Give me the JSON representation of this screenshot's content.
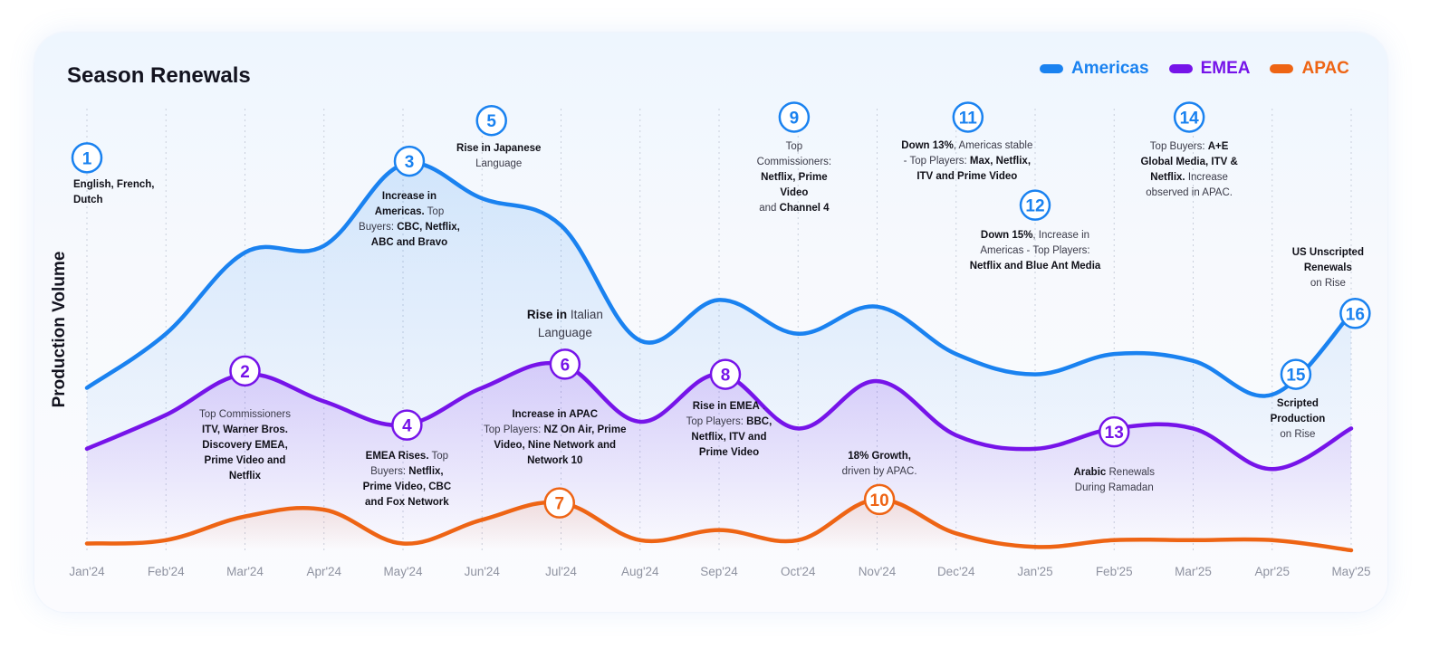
{
  "title": "Season Renewals",
  "ylabel": "Production Volume",
  "legend": [
    {
      "label": "Americas",
      "color": "#1a82f0"
    },
    {
      "label": "EMEA",
      "color": "#7614e9"
    },
    {
      "label": "APAC",
      "color": "#ee6414"
    }
  ],
  "chart_data": {
    "type": "line",
    "x": [
      "Jan'24",
      "Feb'24",
      "Mar'24",
      "Apr'24",
      "May'24",
      "Jun'24",
      "Jul'24",
      "Aug'24",
      "Sep'24",
      "Oct'24",
      "Nov'24",
      "Dec'24",
      "Jan'25",
      "Feb'25",
      "Mar'25",
      "Apr'25",
      "May'25"
    ],
    "series": [
      {
        "name": "Americas",
        "color": "#1a82f0",
        "values": [
          2.4,
          3.2,
          4.4,
          4.5,
          5.7,
          5.2,
          4.8,
          3.1,
          3.7,
          3.2,
          3.6,
          2.9,
          2.6,
          2.9,
          2.8,
          2.3,
          3.5
        ]
      },
      {
        "name": "EMEA",
        "color": "#7614e9",
        "values": [
          1.5,
          2.0,
          2.6,
          2.2,
          1.85,
          2.4,
          2.75,
          1.9,
          2.6,
          1.8,
          2.5,
          1.7,
          1.5,
          1.8,
          1.8,
          1.2,
          1.8
        ]
      },
      {
        "name": "APAC",
        "color": "#ee6414",
        "values": [
          0.1,
          0.15,
          0.5,
          0.6,
          0.1,
          0.45,
          0.7,
          0.15,
          0.3,
          0.15,
          0.75,
          0.25,
          0.05,
          0.15,
          0.15,
          0.15,
          0.0
        ]
      }
    ],
    "ylim": [
      0,
      6.5
    ],
    "grid": true,
    "legend_position": "top-right",
    "markers": [
      {
        "label": "1",
        "x": 0,
        "y": 5.8,
        "color": "#1a82f0",
        "series": "Americas"
      },
      {
        "label": "2",
        "x": 2.0,
        "y": 2.65,
        "color": "#7614e9",
        "series": "EMEA"
      },
      {
        "label": "3",
        "x": 4.08,
        "y": 5.75,
        "color": "#1a82f0",
        "series": "Americas"
      },
      {
        "label": "4",
        "x": 4.05,
        "y": 1.85,
        "color": "#7614e9",
        "series": "EMEA"
      },
      {
        "label": "5",
        "x": 5.12,
        "y": 6.35,
        "color": "#1a82f0",
        "series": "Americas"
      },
      {
        "label": "6",
        "x": 6.05,
        "y": 2.75,
        "color": "#7614e9",
        "series": "EMEA"
      },
      {
        "label": "7",
        "x": 5.98,
        "y": 0.7,
        "color": "#ee6414",
        "series": "APAC"
      },
      {
        "label": "8",
        "x": 8.08,
        "y": 2.6,
        "color": "#7614e9",
        "series": "EMEA"
      },
      {
        "label": "9",
        "x": 8.95,
        "y": 6.4,
        "color": "#1a82f0",
        "series": "Americas"
      },
      {
        "label": "10",
        "x": 10.03,
        "y": 0.75,
        "color": "#ee6414",
        "series": "APAC"
      },
      {
        "label": "11",
        "x": 11.15,
        "y": 6.4,
        "color": "#1a82f0",
        "series": "Americas"
      },
      {
        "label": "12",
        "x": 12.0,
        "y": 5.1,
        "color": "#1a82f0",
        "series": "Americas"
      },
      {
        "label": "13",
        "x": 13.0,
        "y": 1.75,
        "color": "#7614e9",
        "series": "EMEA"
      },
      {
        "label": "14",
        "x": 13.95,
        "y": 6.4,
        "color": "#1a82f0",
        "series": "Americas"
      },
      {
        "label": "15",
        "x": 15.3,
        "y": 2.6,
        "color": "#1a82f0",
        "series": "Americas"
      },
      {
        "label": "16",
        "x": 16.05,
        "y": 3.5,
        "color": "#1a82f0",
        "series": "Americas"
      }
    ]
  },
  "annotations": [
    {
      "id": "1",
      "lines": [
        "<b>English, French,</b>",
        "<b>Dutch</b>"
      ],
      "align": "left"
    },
    {
      "id": "2",
      "lines": [
        "Top Commissioners",
        "<b>ITV, Warner Bros.</b>",
        "<b>Discovery EMEA,</b>",
        "<b>Prime Video and</b>",
        "<b>Netflix</b>"
      ]
    },
    {
      "id": "3",
      "lines": [
        "<b>Increase in</b>",
        "<b>Americas.</b> Top",
        "Buyers: <b>CBC, Netflix,</b>",
        "<b>ABC and Bravo</b>"
      ]
    },
    {
      "id": "4",
      "lines": [
        "<b>EMEA Rises.</b> Top",
        "Buyers: <b>Netflix,</b>",
        "<b>Prime Video, CBC</b>",
        "<b>and Fox Network</b>"
      ]
    },
    {
      "id": "5",
      "lines": [
        "<b>Rise in Japanese</b>",
        "Language"
      ]
    },
    {
      "id": "6",
      "lines": [
        "<b>Rise in</b> Italian",
        "Language"
      ],
      "big": true
    },
    {
      "id": "7",
      "lines": [
        "<b>Increase in APAC</b>",
        "Top Players: <b>NZ On Air, Prime</b>",
        "<b>Video, Nine Network and</b>",
        "<b>Network 10</b>"
      ]
    },
    {
      "id": "8",
      "lines": [
        "<b>Rise in EMEA</b> .",
        "Top Players: <b>BBC,</b>",
        "<b>Netflix, ITV and</b>",
        "<b>Prime Video</b>"
      ]
    },
    {
      "id": "9",
      "lines": [
        "Top",
        "Commissioners:",
        "<b>Netflix, Prime</b>",
        "<b>Video</b>",
        "and <b>Channel 4</b>"
      ]
    },
    {
      "id": "10",
      "lines": [
        "<b>18% Growth,</b>",
        "driven by APAC."
      ]
    },
    {
      "id": "11",
      "lines": [
        "<b>Down 13%</b>, Americas stable",
        "- Top Players: <b>Max, Netflix,</b>",
        "<b>ITV and Prime Video</b>"
      ]
    },
    {
      "id": "12",
      "lines": [
        "<b>Down 15%</b>, Increase in",
        "Americas - Top Players:",
        "<b>Netflix and Blue Ant Media</b>"
      ]
    },
    {
      "id": "13",
      "lines": [
        "<b>Arabic</b> Renewals",
        "During Ramadan"
      ]
    },
    {
      "id": "14",
      "lines": [
        "Top Buyers: <b>A+E</b>",
        "<b>Global Media, ITV &amp;</b>",
        "<b>Netflix.</b> Increase",
        "observed in APAC."
      ]
    },
    {
      "id": "15",
      "lines": [
        "<b>Scripted</b>",
        "<b>Production</b>",
        "on Rise"
      ]
    },
    {
      "id": "16",
      "lines": [
        "<b>US Unscripted</b>",
        "<b>Renewals</b>",
        "on Rise"
      ]
    }
  ]
}
